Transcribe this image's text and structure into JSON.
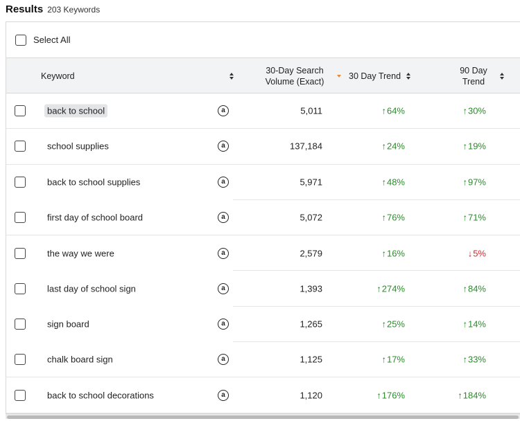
{
  "header": {
    "title": "Results",
    "count": "203 Keywords"
  },
  "select_all_label": "Select All",
  "columns": {
    "keyword": "Keyword",
    "volume_line1": "30-Day Search",
    "volume_line2": "Volume (Exact)",
    "trend30": "30 Day Trend",
    "trend90_line1": "90 Day",
    "trend90_line2": "Trend"
  },
  "source_icon": "amazon-icon",
  "colors": {
    "trend_up": "#2e8a2e",
    "trend_down": "#d8262b",
    "active_sort": "#e8883a"
  },
  "rows": [
    {
      "keyword": "back to school",
      "volume": "5,011",
      "t30_arrow": "↑",
      "t30": "64%",
      "t30_dir": "up",
      "t90_arrow": "↑",
      "t90": "30%",
      "t90_dir": "up"
    },
    {
      "keyword": "school supplies",
      "volume": "137,184",
      "t30_arrow": "↑",
      "t30": "24%",
      "t30_dir": "up",
      "t90_arrow": "↑",
      "t90": "19%",
      "t90_dir": "up"
    },
    {
      "keyword": "back to school supplies",
      "volume": "5,971",
      "t30_arrow": "↑",
      "t30": "48%",
      "t30_dir": "up",
      "t90_arrow": "↑",
      "t90": "97%",
      "t90_dir": "up"
    },
    {
      "keyword": "first day of school board",
      "volume": "5,072",
      "t30_arrow": "↑",
      "t30": "76%",
      "t30_dir": "up",
      "t90_arrow": "↑",
      "t90": "71%",
      "t90_dir": "up"
    },
    {
      "keyword": "the way we were",
      "volume": "2,579",
      "t30_arrow": "↑",
      "t30": "16%",
      "t30_dir": "up",
      "t90_arrow": "↓",
      "t90": "5%",
      "t90_dir": "down"
    },
    {
      "keyword": "last day of school sign",
      "volume": "1,393",
      "t30_arrow": "↑",
      "t30": "274%",
      "t30_dir": "up",
      "t90_arrow": "↑",
      "t90": "84%",
      "t90_dir": "up"
    },
    {
      "keyword": "sign board",
      "volume": "1,265",
      "t30_arrow": "↑",
      "t30": "25%",
      "t30_dir": "up",
      "t90_arrow": "↑",
      "t90": "14%",
      "t90_dir": "up"
    },
    {
      "keyword": "chalk board sign",
      "volume": "1,125",
      "t30_arrow": "↑",
      "t30": "17%",
      "t30_dir": "up",
      "t90_arrow": "↑",
      "t90": "33%",
      "t90_dir": "up"
    },
    {
      "keyword": "back to school decorations",
      "volume": "1,120",
      "t30_arrow": "↑",
      "t30": "176%",
      "t30_dir": "up",
      "t90_arrow": "↑",
      "t90": "184%",
      "t90_dir": "up"
    }
  ]
}
